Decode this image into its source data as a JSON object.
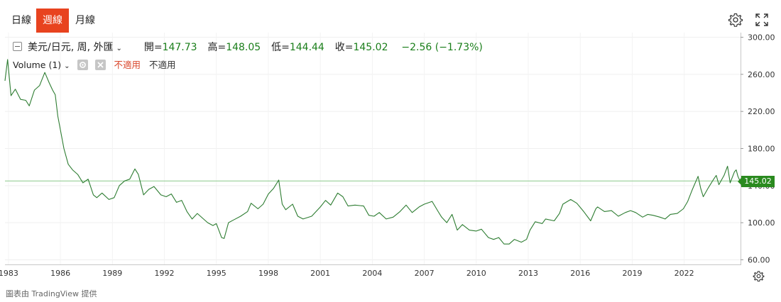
{
  "tabs": [
    {
      "label": "日線",
      "active": false
    },
    {
      "label": "週線",
      "active": true
    },
    {
      "label": "月線",
      "active": false
    }
  ],
  "toolbar": {
    "settings_icon": "gear-icon",
    "fullscreen_icon": "expand-icon"
  },
  "legend": {
    "symbol": "美元/日元, 周, 外匯",
    "open_label": "開",
    "open": "147.73",
    "high_label": "高",
    "high": "148.05",
    "low_label": "低",
    "low": "144.44",
    "close_label": "收",
    "close": "145.02",
    "change": "−2.56 (−1.73%)",
    "volume_label": "Volume (1)",
    "na_red": "不適用",
    "na_gray": "不適用"
  },
  "price_tag": "145.02",
  "footer": "圖表由 TradingView 提供",
  "colors": {
    "line": "#2e7d32",
    "accent": "#e8431f",
    "tag": "#2a8a1f"
  },
  "chart_data": {
    "type": "line",
    "title": "",
    "xlabel": "",
    "ylabel": "",
    "ylim": [
      55,
      305
    ],
    "xlim": [
      1982.8,
      2025.25
    ],
    "yticks": [
      "300.00",
      "260.00",
      "220.00",
      "180.00",
      "140.00",
      "100.00",
      "60.00"
    ],
    "ytick_values": [
      300,
      260,
      220,
      180,
      140,
      100,
      60
    ],
    "xticks": [
      "1983",
      "1986",
      "1989",
      "1992",
      "1995",
      "1998",
      "2001",
      "2004",
      "2007",
      "2010",
      "2013",
      "2016",
      "2019",
      "2022"
    ],
    "xtick_values": [
      1983,
      1986,
      1989,
      1992,
      1995,
      1998,
      2001,
      2004,
      2007,
      2010,
      2013,
      2016,
      2019,
      2022
    ],
    "last_price": 145.02,
    "grid": true,
    "series": [
      {
        "name": "",
        "points": [
          [
            1982.8,
            253
          ],
          [
            1982.95,
            276
          ],
          [
            1983.15,
            237
          ],
          [
            1983.4,
            244
          ],
          [
            1983.7,
            233
          ],
          [
            1984.0,
            232
          ],
          [
            1984.2,
            226
          ],
          [
            1984.5,
            243
          ],
          [
            1984.8,
            248
          ],
          [
            1985.1,
            262
          ],
          [
            1985.35,
            251
          ],
          [
            1985.55,
            243
          ],
          [
            1985.7,
            238
          ],
          [
            1985.85,
            215
          ],
          [
            1986.0,
            200
          ],
          [
            1986.2,
            180
          ],
          [
            1986.45,
            163
          ],
          [
            1986.7,
            157
          ],
          [
            1987.0,
            152
          ],
          [
            1987.3,
            143
          ],
          [
            1987.6,
            147
          ],
          [
            1987.9,
            130
          ],
          [
            1988.1,
            127
          ],
          [
            1988.4,
            132
          ],
          [
            1988.8,
            125
          ],
          [
            1989.1,
            127
          ],
          [
            1989.4,
            140
          ],
          [
            1989.7,
            145
          ],
          [
            1990.0,
            147
          ],
          [
            1990.3,
            158
          ],
          [
            1990.5,
            152
          ],
          [
            1990.8,
            130
          ],
          [
            1991.1,
            136
          ],
          [
            1991.4,
            139
          ],
          [
            1991.8,
            130
          ],
          [
            1992.1,
            128
          ],
          [
            1992.4,
            131
          ],
          [
            1992.7,
            122
          ],
          [
            1993.0,
            124
          ],
          [
            1993.3,
            112
          ],
          [
            1993.6,
            104
          ],
          [
            1993.9,
            110
          ],
          [
            1994.2,
            105
          ],
          [
            1994.5,
            100
          ],
          [
            1994.8,
            97
          ],
          [
            1995.0,
            99
          ],
          [
            1995.3,
            84
          ],
          [
            1995.45,
            83
          ],
          [
            1995.7,
            100
          ],
          [
            1996.0,
            103
          ],
          [
            1996.4,
            107
          ],
          [
            1996.8,
            112
          ],
          [
            1997.0,
            121
          ],
          [
            1997.4,
            115
          ],
          [
            1997.7,
            120
          ],
          [
            1998.0,
            131
          ],
          [
            1998.3,
            137
          ],
          [
            1998.6,
            146
          ],
          [
            1998.8,
            120
          ],
          [
            1999.0,
            114
          ],
          [
            1999.4,
            120
          ],
          [
            1999.7,
            107
          ],
          [
            2000.0,
            104
          ],
          [
            2000.5,
            107
          ],
          [
            2001.0,
            117
          ],
          [
            2001.3,
            124
          ],
          [
            2001.6,
            119
          ],
          [
            2002.0,
            132
          ],
          [
            2002.3,
            128
          ],
          [
            2002.6,
            118
          ],
          [
            2003.0,
            119
          ],
          [
            2003.5,
            118
          ],
          [
            2003.8,
            108
          ],
          [
            2004.1,
            107
          ],
          [
            2004.4,
            111
          ],
          [
            2004.8,
            104
          ],
          [
            2005.2,
            106
          ],
          [
            2005.6,
            112
          ],
          [
            2005.95,
            119
          ],
          [
            2006.3,
            111
          ],
          [
            2006.7,
            117
          ],
          [
            2007.0,
            120
          ],
          [
            2007.45,
            123
          ],
          [
            2007.8,
            112
          ],
          [
            2008.0,
            106
          ],
          [
            2008.3,
            100
          ],
          [
            2008.6,
            109
          ],
          [
            2008.9,
            92
          ],
          [
            2009.2,
            98
          ],
          [
            2009.6,
            92
          ],
          [
            2010.0,
            91
          ],
          [
            2010.3,
            93
          ],
          [
            2010.7,
            84
          ],
          [
            2011.0,
            82
          ],
          [
            2011.3,
            84
          ],
          [
            2011.6,
            77
          ],
          [
            2011.9,
            77
          ],
          [
            2012.2,
            82
          ],
          [
            2012.6,
            79
          ],
          [
            2012.9,
            82
          ],
          [
            2013.1,
            92
          ],
          [
            2013.4,
            101
          ],
          [
            2013.8,
            99
          ],
          [
            2014.0,
            104
          ],
          [
            2014.5,
            102
          ],
          [
            2014.8,
            110
          ],
          [
            2015.0,
            120
          ],
          [
            2015.45,
            125
          ],
          [
            2015.8,
            121
          ],
          [
            2016.2,
            112
          ],
          [
            2016.6,
            102
          ],
          [
            2016.9,
            115
          ],
          [
            2017.0,
            117
          ],
          [
            2017.4,
            112
          ],
          [
            2017.8,
            113
          ],
          [
            2018.2,
            107
          ],
          [
            2018.6,
            111
          ],
          [
            2018.9,
            113
          ],
          [
            2019.2,
            111
          ],
          [
            2019.6,
            106
          ],
          [
            2019.9,
            109
          ],
          [
            2020.2,
            108
          ],
          [
            2020.6,
            106
          ],
          [
            2020.9,
            104
          ],
          [
            2021.2,
            109
          ],
          [
            2021.6,
            110
          ],
          [
            2021.95,
            115
          ],
          [
            2022.2,
            123
          ],
          [
            2022.45,
            135
          ],
          [
            2022.8,
            150
          ],
          [
            2022.95,
            137
          ],
          [
            2023.1,
            128
          ],
          [
            2023.4,
            138
          ],
          [
            2023.7,
            147
          ],
          [
            2023.85,
            151
          ],
          [
            2024.0,
            141
          ],
          [
            2024.3,
            151
          ],
          [
            2024.5,
            161
          ],
          [
            2024.65,
            143
          ],
          [
            2024.9,
            155
          ],
          [
            2025.0,
            157
          ],
          [
            2025.1,
            150
          ],
          [
            2025.22,
            145
          ]
        ]
      }
    ]
  }
}
